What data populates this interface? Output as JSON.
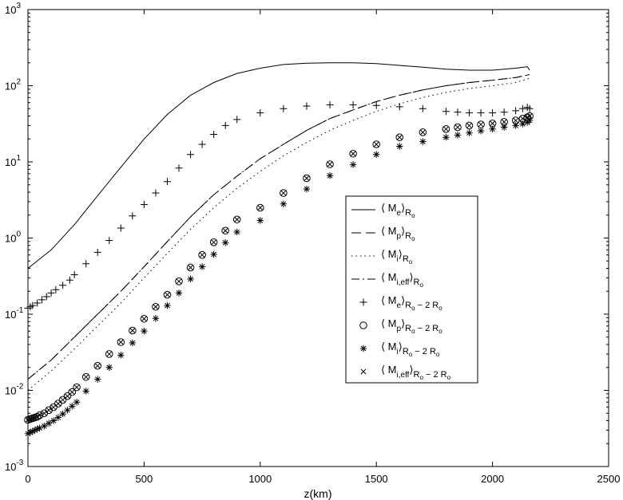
{
  "chart_data": {
    "type": "line",
    "title": "",
    "xlabel": "z(km)",
    "ylabel": "",
    "xlim": [
      0,
      2500
    ],
    "ylim": [
      0.001,
      1000
    ],
    "yscale": "log",
    "grid": false,
    "legend_position": "center-right",
    "x_ticks": [
      "0",
      "500",
      "1000",
      "1500",
      "2000",
      "2500"
    ],
    "y_ticks": [
      {
        "base": "10",
        "exp": "-3"
      },
      {
        "base": "10",
        "exp": "-2"
      },
      {
        "base": "10",
        "exp": "-1"
      },
      {
        "base": "10",
        "exp": "0"
      },
      {
        "base": "10",
        "exp": "1"
      },
      {
        "base": "10",
        "exp": "2"
      },
      {
        "base": "10",
        "exp": "3"
      }
    ],
    "legend": [
      {
        "main": "⟨ M",
        "sub": "e",
        "close": "⟩",
        "r": "R",
        "rsub": "o",
        "suffix": ""
      },
      {
        "main": "⟨ M",
        "sub": "p",
        "close": "⟩",
        "r": "R",
        "rsub": "o",
        "suffix": ""
      },
      {
        "main": "⟨ M",
        "sub": "i",
        "close": "⟩",
        "r": "R",
        "rsub": "o",
        "suffix": ""
      },
      {
        "main": "⟨ M",
        "sub": "i,eff",
        "close": "⟩",
        "r": "R",
        "rsub": "o",
        "suffix": ""
      },
      {
        "main": "⟨ M",
        "sub": "e",
        "close": "⟩",
        "r": "R",
        "rsub": "o",
        "suffix": " − 2 R"
      },
      {
        "main": "⟨ M",
        "sub": "p",
        "close": "⟩",
        "r": "R",
        "rsub": "o",
        "suffix": " − 2 R"
      },
      {
        "main": "⟨ M",
        "sub": "i",
        "close": "⟩",
        "r": "R",
        "rsub": "o",
        "suffix": " − 2 R"
      },
      {
        "main": "⟨ M",
        "sub": "i,eff",
        "close": "⟩",
        "r": "R",
        "rsub": "o",
        "suffix": " − 2 R"
      }
    ],
    "series": [
      {
        "style": "solid",
        "marker": "none",
        "x": [
          0,
          100,
          200,
          300,
          400,
          500,
          600,
          700,
          800,
          900,
          1000,
          1100,
          1200,
          1300,
          1400,
          1500,
          1600,
          1700,
          1800,
          1900,
          2000,
          2100,
          2150,
          2160
        ],
        "y": [
          0.4,
          0.7,
          1.5,
          3.6,
          8.5,
          20,
          42,
          75,
          110,
          145,
          170,
          190,
          198,
          200,
          200,
          195,
          185,
          175,
          165,
          160,
          160,
          170,
          178,
          160
        ]
      },
      {
        "style": "dashed",
        "marker": "none",
        "x": [
          0,
          100,
          200,
          300,
          400,
          500,
          600,
          700,
          800,
          900,
          1000,
          1100,
          1200,
          1300,
          1400,
          1500,
          1600,
          1700,
          1800,
          1900,
          2000,
          2100,
          2160
        ],
        "y": [
          0.014,
          0.025,
          0.05,
          0.1,
          0.2,
          0.42,
          0.9,
          1.9,
          3.7,
          6.5,
          11,
          17,
          26,
          37,
          48,
          62,
          75,
          88,
          100,
          110,
          118,
          128,
          140
        ]
      },
      {
        "style": "dotted",
        "marker": "none",
        "x": [
          0,
          100,
          200,
          300,
          400,
          500,
          600,
          700,
          800,
          900,
          1000,
          1100,
          1200,
          1300,
          1400,
          1500,
          1600,
          1700,
          1800,
          1900,
          2000,
          2100,
          2160
        ],
        "y": [
          0.01,
          0.018,
          0.035,
          0.07,
          0.14,
          0.3,
          0.63,
          1.3,
          2.5,
          4.5,
          7.5,
          12,
          18,
          26,
          35,
          46,
          58,
          70,
          82,
          92,
          100,
          110,
          125
        ]
      },
      {
        "style": "dashdot",
        "marker": "none",
        "x": [
          0,
          100,
          200,
          300,
          400,
          500,
          600,
          700,
          800,
          900,
          1000,
          1100,
          1200,
          1300,
          1400,
          1500,
          1600,
          1700,
          1800,
          1900,
          2000,
          2100,
          2160
        ],
        "y": [
          0.014,
          0.025,
          0.05,
          0.1,
          0.2,
          0.42,
          0.9,
          1.9,
          3.7,
          6.5,
          11,
          17,
          26,
          37,
          48,
          62,
          75,
          88,
          100,
          110,
          118,
          128,
          140
        ]
      },
      {
        "style": "none",
        "marker": "plus",
        "x": [
          0,
          10,
          20,
          40,
          60,
          80,
          100,
          120,
          150,
          180,
          200,
          250,
          300,
          350,
          400,
          450,
          500,
          550,
          600,
          650,
          700,
          750,
          800,
          850,
          900,
          1000,
          1100,
          1200,
          1300,
          1400,
          1500,
          1600,
          1700,
          1800,
          1850,
          1900,
          1950,
          2000,
          2050,
          2100,
          2130,
          2150,
          2160
        ],
        "y": [
          0.12,
          0.125,
          0.13,
          0.14,
          0.155,
          0.17,
          0.19,
          0.21,
          0.24,
          0.28,
          0.33,
          0.46,
          0.65,
          0.93,
          1.35,
          1.95,
          2.75,
          3.9,
          5.5,
          8.3,
          12.5,
          17,
          23,
          30,
          36,
          44,
          50,
          54,
          56,
          56,
          55,
          53,
          50,
          46,
          45,
          44,
          44,
          44,
          45,
          47,
          50,
          52,
          50
        ]
      },
      {
        "style": "none",
        "marker": "circle",
        "x": [
          0,
          10,
          20,
          30,
          40,
          50,
          70,
          90,
          110,
          130,
          150,
          170,
          190,
          210,
          250,
          300,
          350,
          400,
          450,
          500,
          550,
          600,
          650,
          700,
          750,
          800,
          850,
          900,
          1000,
          1100,
          1200,
          1300,
          1400,
          1500,
          1600,
          1700,
          1800,
          1850,
          1900,
          1950,
          2000,
          2050,
          2100,
          2130,
          2150,
          2160
        ],
        "y": [
          0.0041,
          0.0042,
          0.0043,
          0.0044,
          0.0045,
          0.0047,
          0.005,
          0.0055,
          0.006,
          0.0067,
          0.0075,
          0.0084,
          0.0095,
          0.011,
          0.015,
          0.021,
          0.03,
          0.043,
          0.061,
          0.087,
          0.125,
          0.18,
          0.27,
          0.41,
          0.6,
          0.88,
          1.25,
          1.75,
          2.5,
          3.9,
          6.1,
          9.3,
          12.8,
          17,
          21,
          24.5,
          27,
          28.5,
          30,
          31,
          32,
          33.5,
          35,
          37,
          38.5,
          40
        ]
      },
      {
        "style": "none",
        "marker": "asterisk",
        "x": [
          0,
          10,
          20,
          30,
          40,
          50,
          70,
          90,
          110,
          130,
          150,
          170,
          190,
          210,
          250,
          300,
          350,
          400,
          450,
          500,
          550,
          600,
          650,
          700,
          750,
          800,
          850,
          900,
          1000,
          1100,
          1200,
          1300,
          1400,
          1500,
          1600,
          1700,
          1800,
          1850,
          1900,
          1950,
          2000,
          2050,
          2100,
          2130,
          2150,
          2160
        ],
        "y": [
          0.0027,
          0.0028,
          0.0029,
          0.003,
          0.0031,
          0.0032,
          0.0034,
          0.0037,
          0.004,
          0.0044,
          0.0049,
          0.0055,
          0.0062,
          0.007,
          0.0098,
          0.014,
          0.02,
          0.029,
          0.042,
          0.06,
          0.088,
          0.13,
          0.19,
          0.29,
          0.42,
          0.61,
          0.87,
          1.2,
          1.7,
          2.8,
          4.4,
          6.6,
          9.2,
          12.5,
          16,
          18.5,
          21,
          22.5,
          24,
          25.5,
          27,
          28.5,
          30,
          31.5,
          33,
          35
        ]
      },
      {
        "style": "none",
        "marker": "x",
        "x": [
          0,
          10,
          20,
          30,
          40,
          50,
          70,
          90,
          110,
          130,
          150,
          170,
          190,
          210,
          250,
          300,
          350,
          400,
          450,
          500,
          550,
          600,
          650,
          700,
          750,
          800,
          850,
          900,
          1000,
          1100,
          1200,
          1300,
          1400,
          1500,
          1600,
          1700,
          1800,
          1850,
          1900,
          1950,
          2000,
          2050,
          2100,
          2130,
          2150,
          2160
        ],
        "y": [
          0.0041,
          0.0042,
          0.0043,
          0.0044,
          0.0045,
          0.0047,
          0.005,
          0.0055,
          0.006,
          0.0067,
          0.0075,
          0.0084,
          0.0095,
          0.011,
          0.015,
          0.021,
          0.03,
          0.043,
          0.061,
          0.087,
          0.125,
          0.18,
          0.27,
          0.41,
          0.6,
          0.88,
          1.25,
          1.75,
          2.5,
          3.9,
          6.1,
          9.3,
          12.8,
          17,
          21,
          24.5,
          27,
          28.5,
          30,
          31,
          32,
          33.5,
          35,
          37,
          38.5,
          40
        ]
      }
    ]
  }
}
